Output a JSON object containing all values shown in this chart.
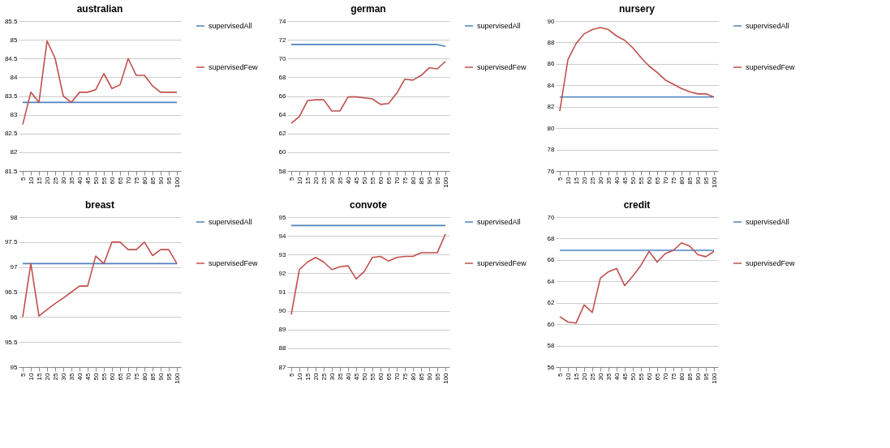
{
  "chart_data": [
    {
      "type": "line",
      "title": "australian",
      "categories": [
        "5",
        "10",
        "15",
        "20",
        "25",
        "30",
        "35",
        "40",
        "45",
        "50",
        "55",
        "60",
        "65",
        "70",
        "75",
        "80",
        "85",
        "90",
        "95",
        "100"
      ],
      "ylim": [
        81.5,
        85.5
      ],
      "yticks": [
        81.5,
        82,
        82.5,
        83,
        83.5,
        84,
        84.5,
        85,
        85.5
      ],
      "grid": "y",
      "legend": "right",
      "series": [
        {
          "name": "supervisedAll",
          "color": "#4f81bd",
          "values": [
            83.33,
            83.33,
            83.33,
            83.33,
            83.33,
            83.33,
            83.33,
            83.33,
            83.33,
            83.33,
            83.33,
            83.33,
            83.33,
            83.33,
            83.33,
            83.33,
            83.33,
            83.33,
            83.33,
            83.33
          ]
        },
        {
          "name": "supervisedFew",
          "color": "#c0504d",
          "values": [
            82.74,
            83.6,
            83.33,
            84.97,
            84.5,
            83.5,
            83.33,
            83.6,
            83.6,
            83.67,
            84.1,
            83.7,
            83.8,
            84.5,
            84.05,
            84.05,
            83.77,
            83.6,
            83.6,
            83.6
          ]
        }
      ]
    },
    {
      "type": "line",
      "title": "german",
      "categories": [
        "5",
        "10",
        "15",
        "20",
        "25",
        "30",
        "35",
        "40",
        "45",
        "50",
        "55",
        "60",
        "65",
        "70",
        "75",
        "80",
        "85",
        "90",
        "95",
        "100"
      ],
      "ylim": [
        58,
        74
      ],
      "yticks": [
        58,
        60,
        62,
        64,
        66,
        68,
        70,
        72,
        74
      ],
      "grid": "y",
      "legend": "right",
      "series": [
        {
          "name": "supervisedAll",
          "color": "#4f81bd",
          "values": [
            71.5,
            71.5,
            71.5,
            71.5,
            71.5,
            71.5,
            71.5,
            71.5,
            71.5,
            71.5,
            71.5,
            71.5,
            71.5,
            71.5,
            71.5,
            71.5,
            71.5,
            71.5,
            71.5,
            71.3
          ]
        },
        {
          "name": "supervisedFew",
          "color": "#c0504d",
          "values": [
            63.1,
            63.8,
            65.5,
            65.6,
            65.6,
            64.4,
            64.4,
            65.9,
            65.9,
            65.8,
            65.7,
            65.1,
            65.2,
            66.3,
            67.8,
            67.7,
            68.2,
            69.0,
            68.9,
            69.7
          ]
        }
      ]
    },
    {
      "type": "line",
      "title": "nursery",
      "categories": [
        "5",
        "10",
        "15",
        "20",
        "25",
        "30",
        "35",
        "40",
        "45",
        "50",
        "55",
        "60",
        "65",
        "70",
        "75",
        "80",
        "85",
        "90",
        "95",
        "100"
      ],
      "ylim": [
        76,
        90
      ],
      "yticks": [
        76,
        78,
        80,
        82,
        84,
        86,
        88,
        90
      ],
      "grid": "y",
      "legend": "right",
      "series": [
        {
          "name": "supervisedAll",
          "color": "#4f81bd",
          "values": [
            82.9,
            82.9,
            82.9,
            82.9,
            82.9,
            82.9,
            82.9,
            82.9,
            82.9,
            82.9,
            82.9,
            82.9,
            82.9,
            82.9,
            82.9,
            82.9,
            82.9,
            82.9,
            82.9,
            82.9
          ]
        },
        {
          "name": "supervisedFew",
          "color": "#c0504d",
          "values": [
            81.6,
            86.4,
            87.9,
            88.8,
            89.2,
            89.4,
            89.2,
            88.6,
            88.2,
            87.5,
            86.6,
            85.8,
            85.2,
            84.5,
            84.1,
            83.7,
            83.4,
            83.2,
            83.2,
            82.9
          ]
        }
      ]
    },
    {
      "type": "line",
      "title": "breast",
      "categories": [
        "5",
        "10",
        "15",
        "20",
        "25",
        "30",
        "35",
        "40",
        "45",
        "50",
        "55",
        "60",
        "65",
        "70",
        "75",
        "80",
        "85",
        "90",
        "95",
        "100"
      ],
      "ylim": [
        95,
        98
      ],
      "yticks": [
        95,
        95.5,
        96,
        96.5,
        97,
        97.5,
        98
      ],
      "grid": "y",
      "legend": "right",
      "series": [
        {
          "name": "supervisedAll",
          "color": "#4f81bd",
          "values": [
            97.07,
            97.07,
            97.07,
            97.07,
            97.07,
            97.07,
            97.07,
            97.07,
            97.07,
            97.07,
            97.07,
            97.07,
            97.07,
            97.07,
            97.07,
            97.07,
            97.07,
            97.07,
            97.07,
            97.07
          ]
        },
        {
          "name": "supervisedFew",
          "color": "#c0504d",
          "values": [
            96.0,
            97.07,
            96.02,
            96.15,
            96.27,
            96.38,
            96.5,
            96.62,
            96.62,
            97.22,
            97.07,
            97.5,
            97.5,
            97.35,
            97.35,
            97.5,
            97.23,
            97.35,
            97.35,
            97.07
          ]
        }
      ]
    },
    {
      "type": "line",
      "title": "convote",
      "categories": [
        "5",
        "10",
        "15",
        "20",
        "25",
        "30",
        "35",
        "40",
        "45",
        "50",
        "55",
        "60",
        "65",
        "70",
        "75",
        "80",
        "85",
        "90",
        "95",
        "100"
      ],
      "ylim": [
        87,
        95
      ],
      "yticks": [
        87,
        88,
        89,
        90,
        91,
        92,
        93,
        94,
        95
      ],
      "grid": "y",
      "legend": "right",
      "series": [
        {
          "name": "supervisedAll",
          "color": "#4f81bd",
          "values": [
            94.55,
            94.55,
            94.55,
            94.55,
            94.55,
            94.55,
            94.55,
            94.55,
            94.55,
            94.55,
            94.55,
            94.55,
            94.55,
            94.55,
            94.55,
            94.55,
            94.55,
            94.55,
            94.55,
            94.55
          ]
        },
        {
          "name": "supervisedFew",
          "color": "#c0504d",
          "values": [
            89.8,
            92.2,
            92.6,
            92.85,
            92.6,
            92.2,
            92.35,
            92.4,
            91.7,
            92.1,
            92.85,
            92.9,
            92.65,
            92.85,
            92.9,
            92.9,
            93.1,
            93.1,
            93.1,
            94.1
          ]
        }
      ]
    },
    {
      "type": "line",
      "title": "credit",
      "categories": [
        "5",
        "10",
        "15",
        "20",
        "25",
        "30",
        "35",
        "40",
        "45",
        "50",
        "55",
        "60",
        "65",
        "70",
        "75",
        "80",
        "85",
        "90",
        "95",
        "100"
      ],
      "ylim": [
        56,
        70
      ],
      "yticks": [
        56,
        58,
        60,
        62,
        64,
        66,
        68,
        70
      ],
      "grid": "y",
      "legend": "right",
      "series": [
        {
          "name": "supervisedAll",
          "color": "#4f81bd",
          "values": [
            66.9,
            66.9,
            66.9,
            66.9,
            66.9,
            66.9,
            66.9,
            66.9,
            66.9,
            66.9,
            66.9,
            66.9,
            66.9,
            66.9,
            66.9,
            66.9,
            66.9,
            66.9,
            66.9,
            66.9
          ]
        },
        {
          "name": "supervisedFew",
          "color": "#c0504d",
          "values": [
            60.7,
            60.2,
            60.1,
            61.8,
            61.1,
            64.3,
            64.9,
            65.2,
            63.6,
            64.5,
            65.5,
            66.8,
            65.8,
            66.6,
            66.9,
            67.6,
            67.3,
            66.5,
            66.3,
            66.8
          ]
        }
      ]
    }
  ]
}
